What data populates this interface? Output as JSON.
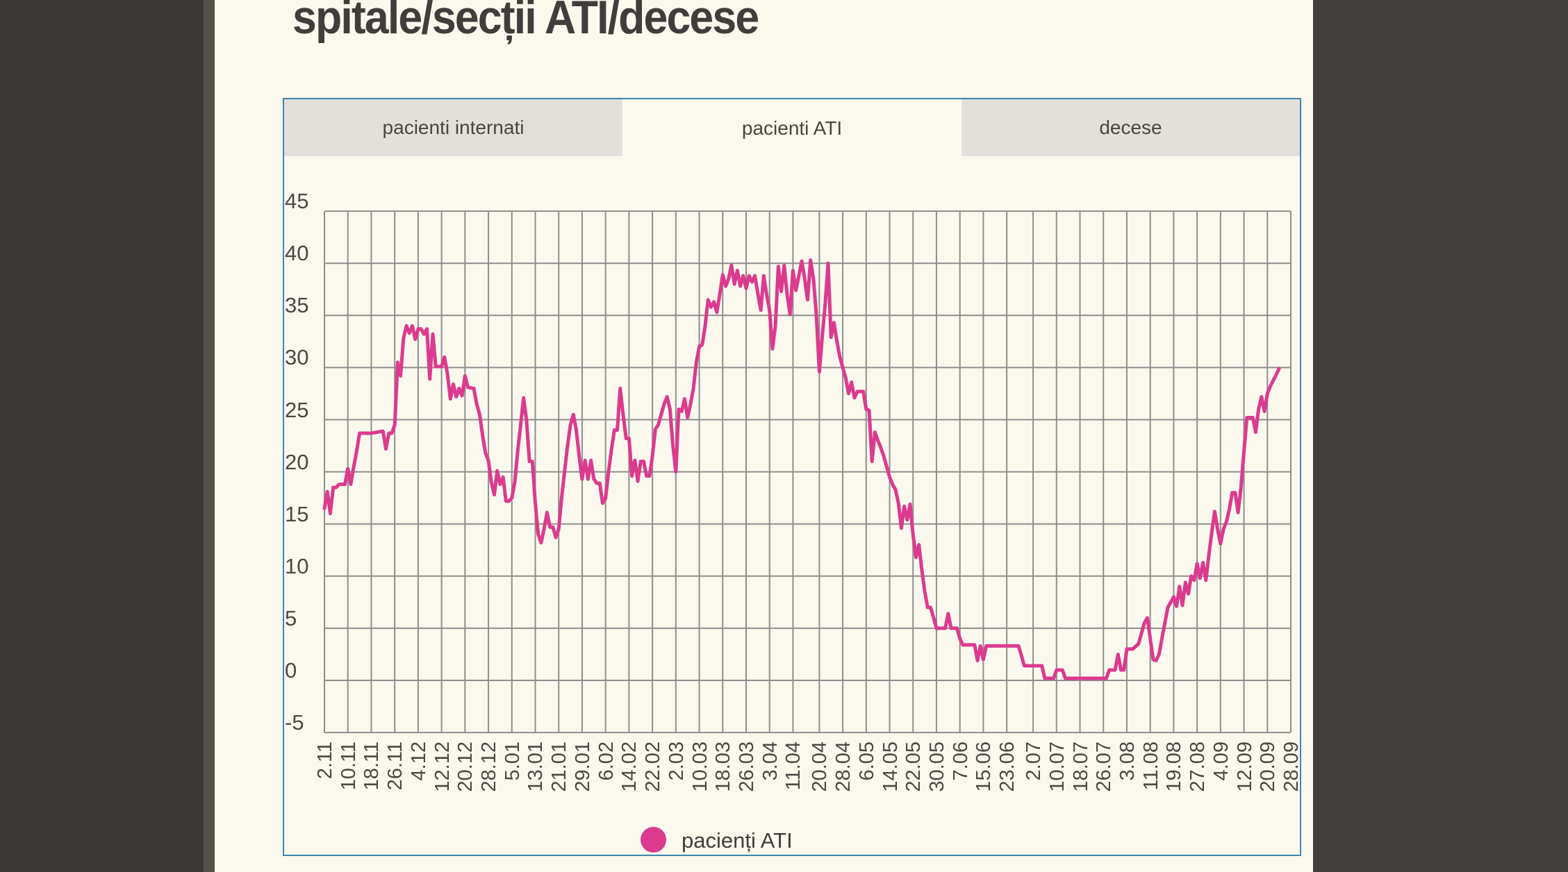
{
  "page": {
    "title": "spitale/secții ATI/decese"
  },
  "tabs": [
    {
      "label": "pacienti internati",
      "active": false
    },
    {
      "label": "pacienti ATI",
      "active": true
    },
    {
      "label": "decese",
      "active": false
    }
  ],
  "legend": {
    "label": "pacienți ATI"
  },
  "colors": {
    "accent_pink": "#dc3a8e",
    "panel_border": "#3e86ad",
    "grid": "#8e8e8e",
    "page_bg": "#fbf8ee",
    "frame_bg": "#434140",
    "tab_inactive_bg": "#e2e0da",
    "text_dark": "#3f3e3c",
    "axis_text": "#4a4945"
  },
  "chart_data": {
    "type": "line",
    "title": "",
    "xlabel": "",
    "ylabel": "",
    "grid": "on",
    "legend_position": "bottom",
    "y_ticks": [
      45,
      40,
      35,
      30,
      25,
      20,
      15,
      10,
      5,
      0,
      -5
    ],
    "y_domain": [
      -5,
      45
    ],
    "x_domain": [
      0,
      330
    ],
    "x_tick_labels": [
      "2.11",
      "10.11",
      "18.11",
      "26.11",
      "4.12",
      "12.12",
      "20.12",
      "28.12",
      "5.01",
      "13.01",
      "21.01",
      "29.01",
      "6.02",
      "14.02",
      "22.02",
      "2.03",
      "10.03",
      "18.03",
      "26.03",
      "3.04",
      "11.04",
      "20.04",
      "28.04",
      "6.05",
      "14.05",
      "22.05",
      "30.05",
      "7.06",
      "15.06",
      "23.06",
      "2.07",
      "10.07",
      "18.07",
      "26.07",
      "3.08",
      "11.08",
      "19.08",
      "27.08",
      "4.09",
      "12.09",
      "20.09",
      "28.09"
    ],
    "x_tick_days": [
      0,
      8,
      16,
      24,
      32,
      40,
      48,
      56,
      64,
      72,
      80,
      88,
      96,
      104,
      112,
      120,
      128,
      136,
      144,
      152,
      160,
      169,
      177,
      185,
      193,
      201,
      209,
      217,
      225,
      233,
      242,
      250,
      258,
      266,
      274,
      282,
      290,
      298,
      306,
      314,
      322,
      330
    ],
    "series": [
      {
        "name": "pacienți ATI",
        "color": "#dc3a8e",
        "points": [
          [
            0,
            16.5
          ],
          [
            1,
            18.1
          ],
          [
            2,
            16
          ],
          [
            3,
            18.5
          ],
          [
            4,
            18.5
          ],
          [
            5,
            18.8
          ],
          [
            6,
            18.8
          ],
          [
            7,
            18.8
          ],
          [
            8,
            20.3
          ],
          [
            9,
            18.8
          ],
          [
            10,
            20.5
          ],
          [
            11,
            22
          ],
          [
            12,
            23.7
          ],
          [
            16,
            23.7
          ],
          [
            20,
            23.9
          ],
          [
            21,
            22.2
          ],
          [
            22,
            23.7
          ],
          [
            23,
            23.7
          ],
          [
            24,
            24.5
          ],
          [
            25,
            30.5
          ],
          [
            26,
            29.2
          ],
          [
            27,
            32.8
          ],
          [
            28,
            34
          ],
          [
            29,
            33.3
          ],
          [
            30,
            34
          ],
          [
            31,
            32.7
          ],
          [
            32,
            33.7
          ],
          [
            33,
            33.7
          ],
          [
            34,
            33.2
          ],
          [
            35,
            33.7
          ],
          [
            36,
            28.9
          ],
          [
            37,
            33.2
          ],
          [
            38,
            30.1
          ],
          [
            40,
            30.1
          ],
          [
            41,
            31
          ],
          [
            42,
            29.4
          ],
          [
            43,
            27
          ],
          [
            44,
            28.4
          ],
          [
            45,
            27.2
          ],
          [
            46,
            28
          ],
          [
            47,
            27.3
          ],
          [
            48,
            29.2
          ],
          [
            49,
            28.1
          ],
          [
            51,
            28
          ],
          [
            52,
            26.5
          ],
          [
            53,
            25.5
          ],
          [
            54,
            23.5
          ],
          [
            55,
            21.8
          ],
          [
            56,
            21.1
          ],
          [
            57,
            19
          ],
          [
            58,
            17.8
          ],
          [
            59,
            20.1
          ],
          [
            60,
            18.8
          ],
          [
            61,
            19.5
          ],
          [
            62,
            17.2
          ],
          [
            63,
            17.2
          ],
          [
            64,
            17.5
          ],
          [
            65,
            19
          ],
          [
            66,
            22
          ],
          [
            67,
            24.5
          ],
          [
            68,
            27.1
          ],
          [
            69,
            25
          ],
          [
            70,
            21
          ],
          [
            71,
            21
          ],
          [
            72,
            17
          ],
          [
            73,
            14
          ],
          [
            74,
            13.2
          ],
          [
            75,
            14.5
          ],
          [
            76,
            16.1
          ],
          [
            77,
            14.7
          ],
          [
            78,
            14.7
          ],
          [
            79,
            13.7
          ],
          [
            80,
            14.5
          ],
          [
            81,
            17.5
          ],
          [
            82,
            20
          ],
          [
            83,
            22.5
          ],
          [
            84,
            24.5
          ],
          [
            85,
            25.5
          ],
          [
            86,
            24
          ],
          [
            87,
            21.5
          ],
          [
            88,
            19.3
          ],
          [
            89,
            21.1
          ],
          [
            90,
            19.3
          ],
          [
            91,
            21.1
          ],
          [
            92,
            19.3
          ],
          [
            93,
            18.9
          ],
          [
            94,
            18.9
          ],
          [
            95,
            17
          ],
          [
            96,
            17.5
          ],
          [
            97,
            20
          ],
          [
            98,
            22.1
          ],
          [
            99,
            24
          ],
          [
            100,
            24
          ],
          [
            101,
            28
          ],
          [
            102,
            25.5
          ],
          [
            103,
            23.2
          ],
          [
            104,
            23.2
          ],
          [
            105,
            19.6
          ],
          [
            106,
            21.1
          ],
          [
            107,
            19.1
          ],
          [
            108,
            21
          ],
          [
            109,
            21
          ],
          [
            110,
            19.6
          ],
          [
            111,
            19.6
          ],
          [
            112,
            21.5
          ],
          [
            113,
            24.1
          ],
          [
            114,
            24.5
          ],
          [
            115,
            25.5
          ],
          [
            116,
            26.5
          ],
          [
            117,
            27.2
          ],
          [
            118,
            26
          ],
          [
            119,
            22.5
          ],
          [
            120,
            20
          ],
          [
            121,
            26
          ],
          [
            122,
            25.8
          ],
          [
            123,
            27
          ],
          [
            124,
            25.2
          ],
          [
            125,
            26.5
          ],
          [
            126,
            28
          ],
          [
            127,
            30.5
          ],
          [
            128,
            32
          ],
          [
            129,
            32.2
          ],
          [
            130,
            34
          ],
          [
            131,
            36.5
          ],
          [
            132,
            35.8
          ],
          [
            133,
            36.3
          ],
          [
            134,
            35.3
          ],
          [
            135,
            37
          ],
          [
            136,
            38.9
          ],
          [
            137,
            37.8
          ],
          [
            138,
            38.5
          ],
          [
            139,
            39.8
          ],
          [
            140,
            38
          ],
          [
            141,
            39.3
          ],
          [
            142,
            37.8
          ],
          [
            143,
            38.8
          ],
          [
            144,
            37.6
          ],
          [
            145,
            38.8
          ],
          [
            146,
            38.2
          ],
          [
            147,
            38.8
          ],
          [
            148,
            37.1
          ],
          [
            149,
            35.5
          ],
          [
            150,
            38.8
          ],
          [
            151,
            37
          ],
          [
            152,
            35.5
          ],
          [
            153,
            31.8
          ],
          [
            154,
            34
          ],
          [
            155,
            39.7
          ],
          [
            156,
            37.3
          ],
          [
            157,
            39.8
          ],
          [
            158,
            37
          ],
          [
            159,
            35.1
          ],
          [
            160,
            39.3
          ],
          [
            161,
            37.4
          ],
          [
            162,
            38.8
          ],
          [
            163,
            40.2
          ],
          [
            164,
            38.5
          ],
          [
            165,
            36.5
          ],
          [
            166,
            40.3
          ],
          [
            167,
            38.5
          ],
          [
            168,
            35
          ],
          [
            169,
            29.6
          ],
          [
            170,
            33
          ],
          [
            171,
            36.1
          ],
          [
            172,
            40
          ],
          [
            173,
            32.9
          ],
          [
            174,
            34.3
          ],
          [
            175,
            32.5
          ],
          [
            176,
            31
          ],
          [
            177,
            30
          ],
          [
            178,
            29
          ],
          [
            179,
            27.5
          ],
          [
            180,
            28.6
          ],
          [
            181,
            27.1
          ],
          [
            182,
            27.7
          ],
          [
            183,
            27.7
          ],
          [
            184,
            27.7
          ],
          [
            185,
            26
          ],
          [
            186,
            25.9
          ],
          [
            187,
            21
          ],
          [
            188,
            23.8
          ],
          [
            189,
            23
          ],
          [
            190,
            22.3
          ],
          [
            191,
            21.5
          ],
          [
            192,
            20.5
          ],
          [
            193,
            19.5
          ],
          [
            194,
            18.8
          ],
          [
            195,
            18.3
          ],
          [
            196,
            17
          ],
          [
            197,
            14.6
          ],
          [
            198,
            16.7
          ],
          [
            199,
            15.4
          ],
          [
            200,
            16.9
          ],
          [
            201,
            14
          ],
          [
            202,
            11.8
          ],
          [
            203,
            13
          ],
          [
            204,
            10.6
          ],
          [
            205,
            8.5
          ],
          [
            206,
            7
          ],
          [
            207,
            7
          ],
          [
            208,
            6
          ],
          [
            209,
            5
          ],
          [
            210,
            5
          ],
          [
            211,
            5
          ],
          [
            212,
            5
          ],
          [
            213,
            6.4
          ],
          [
            214,
            5
          ],
          [
            215,
            5
          ],
          [
            216,
            5
          ],
          [
            217,
            4
          ],
          [
            218,
            3.4
          ],
          [
            219,
            3.4
          ],
          [
            222,
            3.4
          ],
          [
            223,
            1.9
          ],
          [
            224,
            3.3
          ],
          [
            225,
            2
          ],
          [
            226,
            3.3
          ],
          [
            228,
            3.3
          ],
          [
            231,
            3.3
          ],
          [
            234,
            3.3
          ],
          [
            237,
            3.3
          ],
          [
            238,
            2.4
          ],
          [
            239,
            1.4
          ],
          [
            242,
            1.4
          ],
          [
            245,
            1.4
          ],
          [
            246,
            0.2
          ],
          [
            248,
            0.2
          ],
          [
            249,
            0.2
          ],
          [
            250,
            1
          ],
          [
            251,
            1
          ],
          [
            252,
            1
          ],
          [
            253,
            0.2
          ],
          [
            256,
            0.2
          ],
          [
            260,
            0.2
          ],
          [
            264,
            0.2
          ],
          [
            267,
            0.2
          ],
          [
            268,
            1
          ],
          [
            270,
            1
          ],
          [
            271,
            2.5
          ],
          [
            272,
            1
          ],
          [
            273,
            1
          ],
          [
            274,
            3
          ],
          [
            276,
            3
          ],
          [
            278,
            3.5
          ],
          [
            279,
            4.5
          ],
          [
            280,
            5.5
          ],
          [
            281,
            6
          ],
          [
            282,
            4
          ],
          [
            283,
            2
          ],
          [
            284,
            1.9
          ],
          [
            285,
            2.5
          ],
          [
            286,
            4
          ],
          [
            287,
            5.5
          ],
          [
            288,
            7
          ],
          [
            289,
            7.5
          ],
          [
            290,
            8
          ],
          [
            291,
            7.1
          ],
          [
            292,
            9
          ],
          [
            293,
            7.2
          ],
          [
            294,
            9.4
          ],
          [
            295,
            8.3
          ],
          [
            296,
            10
          ],
          [
            297,
            9.6
          ],
          [
            298,
            11.2
          ],
          [
            299,
            9.8
          ],
          [
            300,
            11.3
          ],
          [
            301,
            9.6
          ],
          [
            302,
            12
          ],
          [
            303,
            14.2
          ],
          [
            304,
            16.2
          ],
          [
            305,
            14.5
          ],
          [
            306,
            13.1
          ],
          [
            307,
            14.5
          ],
          [
            308,
            15.2
          ],
          [
            309,
            16.4
          ],
          [
            310,
            18
          ],
          [
            311,
            18
          ],
          [
            312,
            16.1
          ],
          [
            313,
            18.5
          ],
          [
            314,
            22
          ],
          [
            315,
            25.2
          ],
          [
            316,
            25.2
          ],
          [
            317,
            25.2
          ],
          [
            318,
            23.8
          ],
          [
            319,
            26
          ],
          [
            320,
            27.2
          ],
          [
            321,
            25.8
          ],
          [
            322,
            27.5
          ],
          [
            323,
            28.2
          ],
          [
            325,
            29.3
          ],
          [
            326,
            29.9
          ]
        ]
      }
    ]
  }
}
